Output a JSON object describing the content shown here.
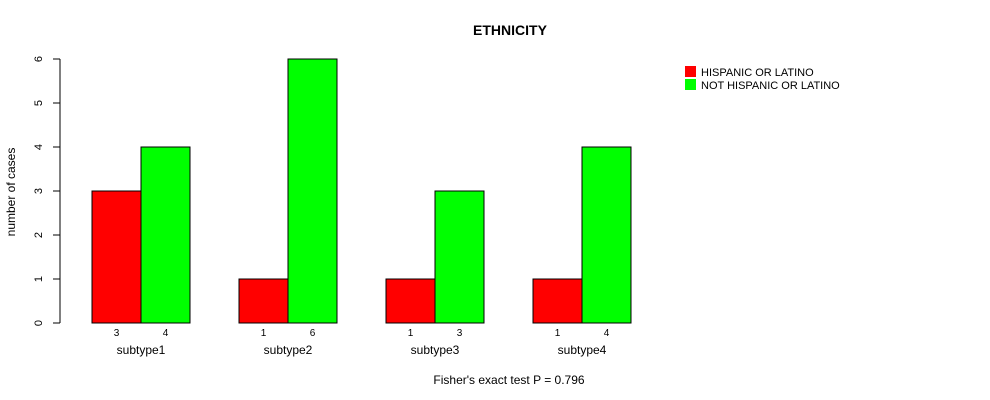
{
  "chart_data": {
    "type": "bar",
    "title": "ETHNICITY",
    "ylabel": "number of cases",
    "xlabel": "",
    "ylim": [
      0,
      6
    ],
    "yticks": [
      0,
      1,
      2,
      3,
      4,
      5,
      6
    ],
    "categories": [
      "subtype1",
      "subtype2",
      "subtype3",
      "subtype4"
    ],
    "series": [
      {
        "name": "HISPANIC OR LATINO",
        "color": "#ff0000",
        "values": [
          3,
          1,
          1,
          1
        ]
      },
      {
        "name": "NOT HISPANIC OR LATINO",
        "color": "#00ff00",
        "values": [
          4,
          6,
          3,
          4
        ]
      }
    ],
    "legend_position": "top-right",
    "grid": false,
    "footnote": "Fisher's exact test P = 0.796"
  }
}
